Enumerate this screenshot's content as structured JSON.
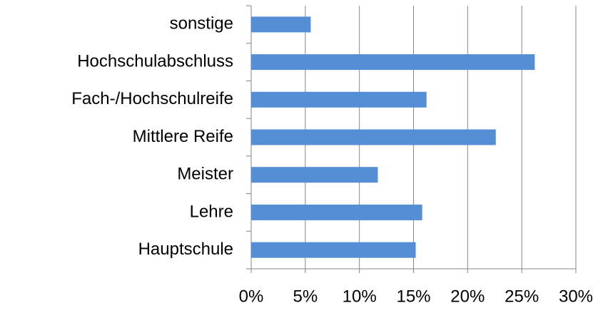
{
  "chart_data": {
    "type": "bar",
    "orientation": "horizontal",
    "categories": [
      "Hauptschule",
      "Lehre",
      "Meister",
      "Mittlere Reife",
      "Fach-/Hochschulreife",
      "Hochschulabschluss",
      "sonstige"
    ],
    "values": [
      15.2,
      15.8,
      11.7,
      22.6,
      16.2,
      26.2,
      5.5
    ],
    "color": "#558ed5",
    "xlim": [
      0,
      30
    ],
    "xticks": [
      {
        "value": 0,
        "label": "0%"
      },
      {
        "value": 5,
        "label": "5%"
      },
      {
        "value": 10,
        "label": "10%"
      },
      {
        "value": 15,
        "label": "15%"
      },
      {
        "value": 20,
        "label": "20%"
      },
      {
        "value": 25,
        "label": "25%"
      },
      {
        "value": 30,
        "label": "30%"
      }
    ],
    "grid": true
  }
}
